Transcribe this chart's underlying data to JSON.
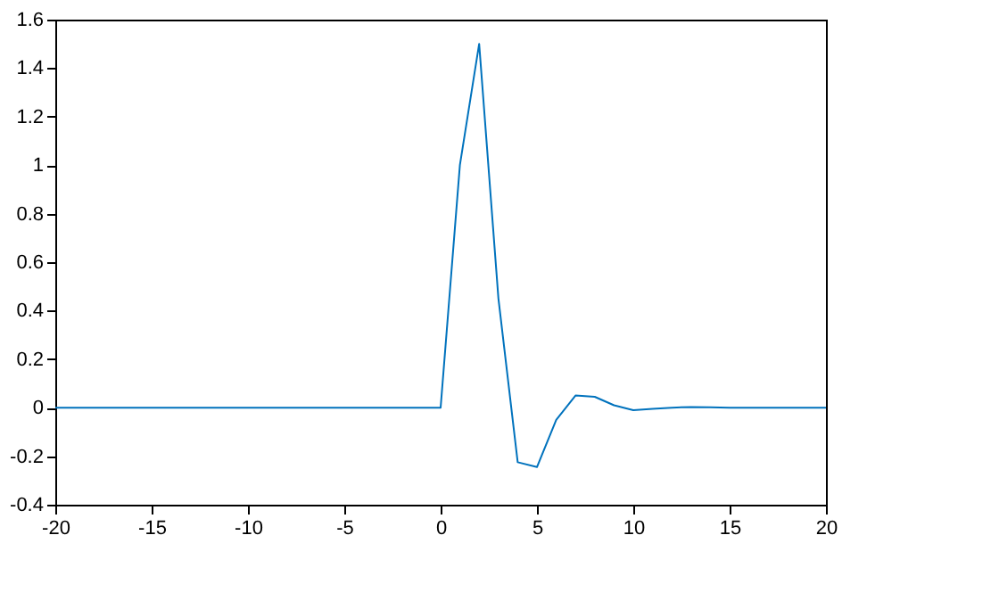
{
  "chart_data": {
    "type": "line",
    "x": [
      -20,
      -10,
      0,
      1,
      2,
      3,
      4,
      5,
      6,
      7,
      8,
      9,
      10,
      11,
      12,
      13,
      14,
      15,
      20
    ],
    "series": [
      {
        "color": "#0072bd",
        "values": [
          0,
          0,
          0,
          1.0,
          1.5,
          0.45,
          -0.225,
          -0.245,
          -0.05,
          0.05,
          0.045,
          0.01,
          -0.01,
          -0.005,
          0.0,
          0.003,
          0.002,
          0.0,
          0.0
        ]
      }
    ],
    "xlim": [
      -20,
      20
    ],
    "xticks": [
      -20,
      -15,
      -10,
      -5,
      0,
      5,
      10,
      15,
      20
    ],
    "ylim": [
      -0.4,
      1.6
    ],
    "yticks": [
      -0.4,
      -0.2,
      0,
      0.2,
      0.4,
      0.6,
      0.8,
      1,
      1.2,
      1.4,
      1.6
    ],
    "grid": false,
    "marker": "none",
    "line_style": "solid"
  }
}
